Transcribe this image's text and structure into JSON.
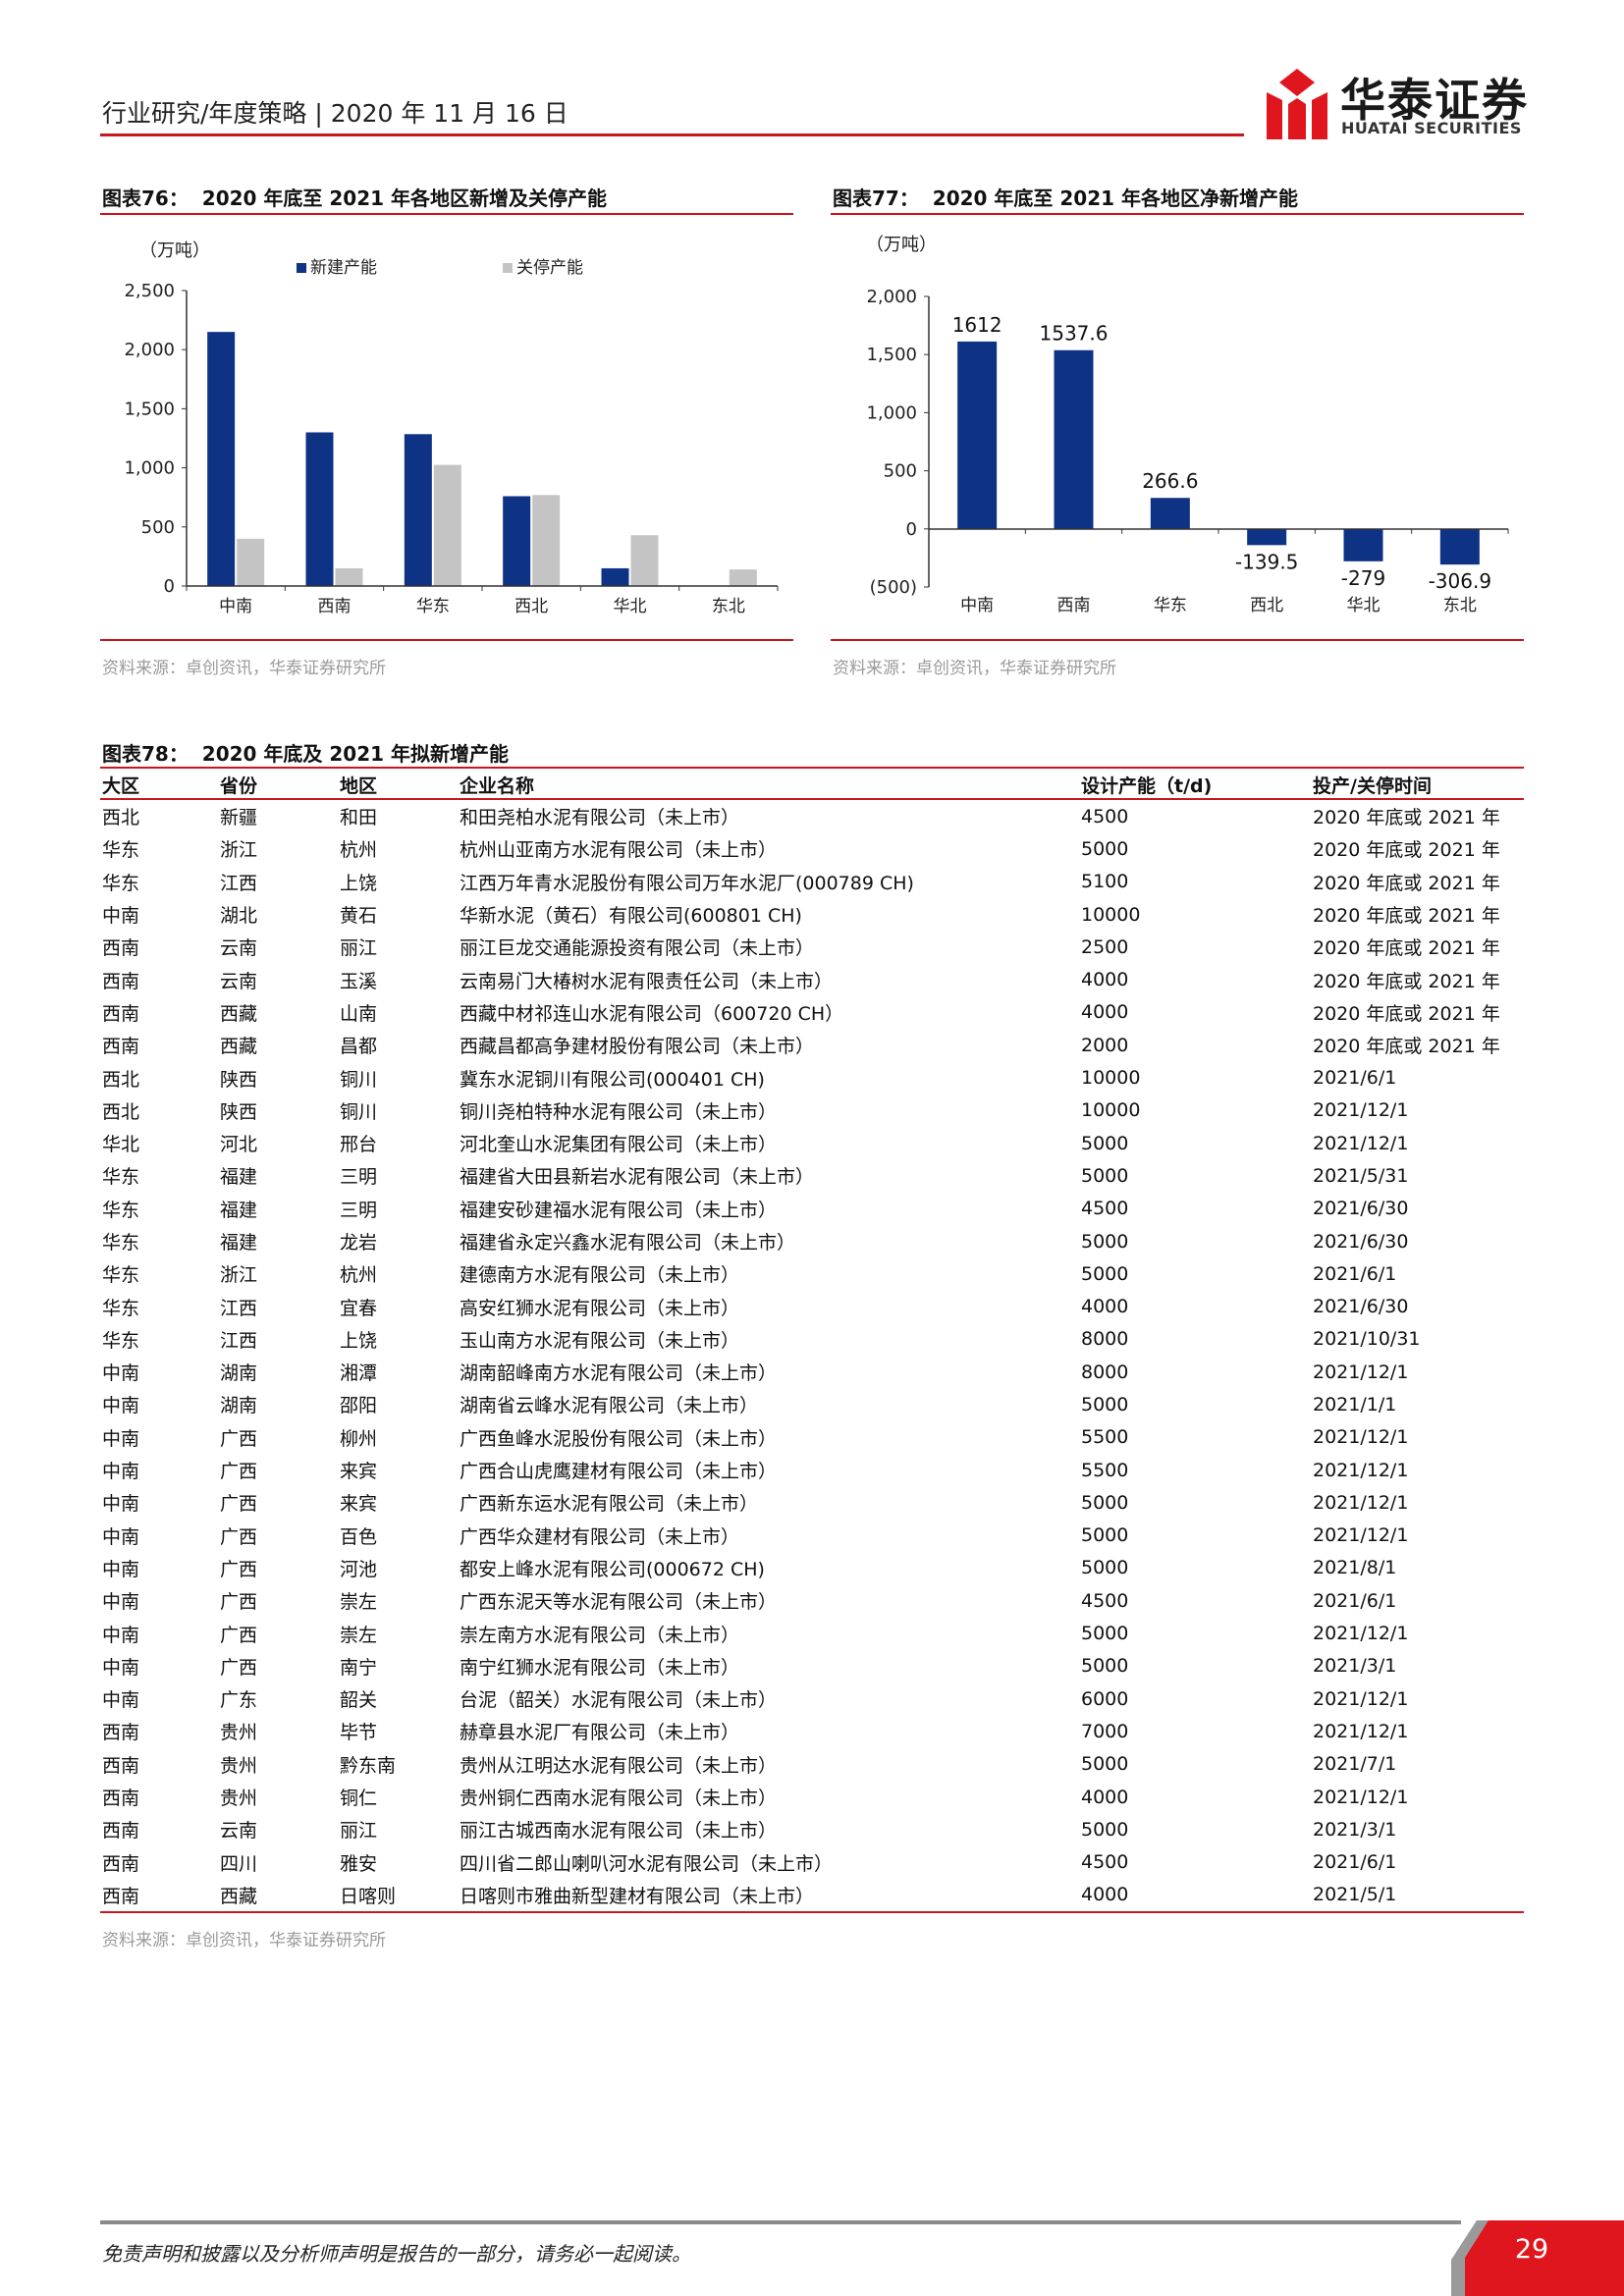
{
  "header": {
    "report_type": "行业研究/年度策略",
    "date": "2020 年 11 月 16 日",
    "logo_cn": "华泰证券",
    "logo_en": "HUATAI SECURITIES",
    "accent_color": "#c8161d"
  },
  "fig76": {
    "number": "图表76：",
    "title": "2020 年底至 2021 年各地区新增及关停产能",
    "source": "资料来源：卓创资讯，华泰证券研究所"
  },
  "fig77": {
    "number": "图表77：",
    "title": "2020 年底至 2021 年各地区净新增产能",
    "source": "资料来源：卓创资讯，华泰证券研究所"
  },
  "chart_data": [
    {
      "type": "bar",
      "unit": "（万吨）",
      "categories": [
        "中南",
        "西南",
        "华东",
        "西北",
        "华北",
        "东北"
      ],
      "series": [
        {
          "name": "新建产能",
          "values": [
            2150,
            1300,
            1285,
            760,
            150,
            0
          ],
          "color": "#0f3384"
        },
        {
          "name": "关停产能",
          "values": [
            400,
            150,
            1025,
            770,
            430,
            140
          ],
          "color": "#c4c4c4"
        }
      ],
      "ylim": [
        0,
        2500
      ],
      "yticks": [
        0,
        500,
        1000,
        1500,
        2000,
        2500
      ],
      "ytick_labels": [
        "0",
        "500",
        "1,000",
        "1,500",
        "2,000",
        "2,500"
      ],
      "legend": "top-center",
      "grid": false
    },
    {
      "type": "bar",
      "unit": "（万吨）",
      "categories": [
        "中南",
        "西南",
        "华东",
        "西北",
        "华北",
        "东北"
      ],
      "values": [
        1612,
        1537.6,
        266.6,
        -139.5,
        -279,
        -306.9
      ],
      "data_labels": [
        "1612",
        "1537.6",
        "266.6",
        "-139.5",
        "-279",
        "-306.9"
      ],
      "color": "#0f3384",
      "ylim": [
        -500,
        2000
      ],
      "yticks": [
        -500,
        0,
        500,
        1000,
        1500,
        2000
      ],
      "ytick_labels": [
        "(500)",
        "0",
        "500",
        "1,000",
        "1,500",
        "2,000"
      ],
      "grid": false
    }
  ],
  "fig78": {
    "number": "图表78：",
    "title": "2020 年底及 2021 年拟新增产能",
    "columns": [
      "大区",
      "省份",
      "地区",
      "企业名称",
      "设计产能（t/d)",
      "投产/关停时间"
    ],
    "rows": [
      [
        "西北",
        "新疆",
        "和田",
        "和田尧柏水泥有限公司（未上市）",
        "4500",
        "2020 年底或 2021 年"
      ],
      [
        "华东",
        "浙江",
        "杭州",
        "杭州山亚南方水泥有限公司（未上市）",
        "5000",
        "2020 年底或 2021 年"
      ],
      [
        "华东",
        "江西",
        "上饶",
        "江西万年青水泥股份有限公司万年水泥厂(000789 CH)",
        "5100",
        "2020 年底或 2021 年"
      ],
      [
        "中南",
        "湖北",
        "黄石",
        "华新水泥（黄石）有限公司(600801 CH)",
        "10000",
        "2020 年底或 2021 年"
      ],
      [
        "西南",
        "云南",
        "丽江",
        "丽江巨龙交通能源投资有限公司（未上市）",
        "2500",
        "2020 年底或 2021 年"
      ],
      [
        "西南",
        "云南",
        "玉溪",
        "云南易门大椿树水泥有限责任公司（未上市）",
        "4000",
        "2020 年底或 2021 年"
      ],
      [
        "西南",
        "西藏",
        "山南",
        "西藏中材祁连山水泥有限公司（600720 CH）",
        "4000",
        "2020 年底或 2021 年"
      ],
      [
        "西南",
        "西藏",
        "昌都",
        "西藏昌都高争建材股份有限公司（未上市）",
        "2000",
        "2020 年底或 2021 年"
      ],
      [
        "西北",
        "陕西",
        "铜川",
        "冀东水泥铜川有限公司(000401 CH)",
        "10000",
        "2021/6/1"
      ],
      [
        "西北",
        "陕西",
        "铜川",
        "铜川尧柏特种水泥有限公司（未上市）",
        "10000",
        "2021/12/1"
      ],
      [
        "华北",
        "河北",
        "邢台",
        "河北奎山水泥集团有限公司（未上市）",
        "5000",
        "2021/12/1"
      ],
      [
        "华东",
        "福建",
        "三明",
        "福建省大田县新岩水泥有限公司（未上市）",
        "5000",
        "2021/5/31"
      ],
      [
        "华东",
        "福建",
        "三明",
        "福建安砂建福水泥有限公司（未上市）",
        "4500",
        "2021/6/30"
      ],
      [
        "华东",
        "福建",
        "龙岩",
        "福建省永定兴鑫水泥有限公司（未上市）",
        "5000",
        "2021/6/30"
      ],
      [
        "华东",
        "浙江",
        "杭州",
        "建德南方水泥有限公司（未上市）",
        "5000",
        "2021/6/1"
      ],
      [
        "华东",
        "江西",
        "宜春",
        "高安红狮水泥有限公司（未上市）",
        "4000",
        "2021/6/30"
      ],
      [
        "华东",
        "江西",
        "上饶",
        "玉山南方水泥有限公司（未上市）",
        "8000",
        "2021/10/31"
      ],
      [
        "中南",
        "湖南",
        "湘潭",
        "湖南韶峰南方水泥有限公司（未上市）",
        "8000",
        "2021/12/1"
      ],
      [
        "中南",
        "湖南",
        "邵阳",
        "湖南省云峰水泥有限公司（未上市）",
        "5000",
        "2021/1/1"
      ],
      [
        "中南",
        "广西",
        "柳州",
        "广西鱼峰水泥股份有限公司（未上市）",
        "5500",
        "2021/12/1"
      ],
      [
        "中南",
        "广西",
        "来宾",
        "广西合山虎鹰建材有限公司（未上市）",
        "5500",
        "2021/12/1"
      ],
      [
        "中南",
        "广西",
        "来宾",
        "广西新东运水泥有限公司（未上市）",
        "5000",
        "2021/12/1"
      ],
      [
        "中南",
        "广西",
        "百色",
        "广西华众建材有限公司（未上市）",
        "5000",
        "2021/12/1"
      ],
      [
        "中南",
        "广西",
        "河池",
        "都安上峰水泥有限公司(000672 CH)",
        "5000",
        "2021/8/1"
      ],
      [
        "中南",
        "广西",
        "崇左",
        "广西东泥天等水泥有限公司（未上市）",
        "4500",
        "2021/6/1"
      ],
      [
        "中南",
        "广西",
        "崇左",
        "崇左南方水泥有限公司（未上市）",
        "5000",
        "2021/12/1"
      ],
      [
        "中南",
        "广西",
        "南宁",
        "南宁红狮水泥有限公司（未上市）",
        "5000",
        "2021/3/1"
      ],
      [
        "中南",
        "广东",
        "韶关",
        "台泥（韶关）水泥有限公司（未上市）",
        "6000",
        "2021/12/1"
      ],
      [
        "西南",
        "贵州",
        "毕节",
        "赫章县水泥厂有限公司（未上市）",
        "7000",
        "2021/12/1"
      ],
      [
        "西南",
        "贵州",
        "黔东南",
        "贵州从江明达水泥有限公司（未上市）",
        "5000",
        "2021/7/1"
      ],
      [
        "西南",
        "贵州",
        "铜仁",
        "贵州铜仁西南水泥有限公司（未上市）",
        "4000",
        "2021/12/1"
      ],
      [
        "西南",
        "云南",
        "丽江",
        "丽江古城西南水泥有限公司（未上市）",
        "5000",
        "2021/3/1"
      ],
      [
        "西南",
        "四川",
        "雅安",
        "四川省二郎山喇叭河水泥有限公司（未上市）",
        "4500",
        "2021/6/1"
      ],
      [
        "西南",
        "西藏",
        "日喀则",
        "日喀则市雅曲新型建材有限公司（未上市）",
        "4000",
        "2021/5/1"
      ]
    ],
    "source": "资料来源：卓创资讯，华泰证券研究所"
  },
  "footer": {
    "disclaimer": "免责声明和披露以及分析师声明是报告的一部分，请务必一起阅读。",
    "page_number": "29"
  }
}
